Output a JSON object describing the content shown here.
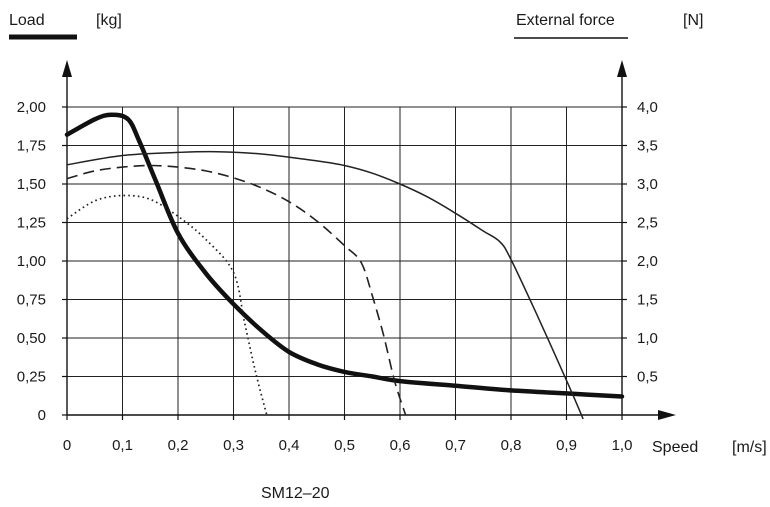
{
  "chart_data": {
    "type": "line",
    "left_axis": {
      "label": "Load",
      "unit": "[kg]",
      "range": [
        0,
        2.0
      ],
      "ticks": [
        "0",
        "0,25",
        "0,50",
        "0,75",
        "1,00",
        "1,25",
        "1,50",
        "1,75",
        "2,00"
      ]
    },
    "right_axis": {
      "label": "External force",
      "unit": "[N]",
      "range": [
        0,
        4.0
      ],
      "ticks": [
        "0,5",
        "1,0",
        "1,5",
        "2,0",
        "2,5",
        "3,0",
        "3,5",
        "4,0"
      ]
    },
    "x_axis": {
      "label": "Speed",
      "unit": "[m/s]",
      "range": [
        0,
        1.0
      ],
      "ticks": [
        "0",
        "0,1",
        "0,2",
        "0,3",
        "0,4",
        "0,5",
        "0,6",
        "0,7",
        "0,8",
        "0,9",
        "1,0"
      ]
    },
    "grid": true,
    "caption": "SM12–20",
    "series": [
      {
        "axis": "left",
        "style": "thick",
        "color": "#111111",
        "x": [
          0.0,
          0.05,
          0.08,
          0.11,
          0.13,
          0.16,
          0.2,
          0.25,
          0.3,
          0.35,
          0.4,
          0.45,
          0.5,
          0.55,
          0.6,
          0.7,
          0.8,
          0.9,
          1.0
        ],
        "y": [
          1.82,
          1.92,
          1.95,
          1.92,
          1.78,
          1.52,
          1.18,
          0.92,
          0.72,
          0.55,
          0.41,
          0.33,
          0.28,
          0.25,
          0.22,
          0.19,
          0.16,
          0.14,
          0.12
        ]
      },
      {
        "axis": "right",
        "style": "solid",
        "color": "#222222",
        "x": [
          0.0,
          0.1,
          0.2,
          0.27,
          0.35,
          0.45,
          0.5,
          0.55,
          0.6,
          0.65,
          0.7,
          0.75,
          0.78,
          0.8,
          0.85,
          0.9,
          0.93
        ],
        "y": [
          3.25,
          3.37,
          3.41,
          3.42,
          3.39,
          3.3,
          3.24,
          3.14,
          3.0,
          2.83,
          2.62,
          2.39,
          2.25,
          2.02,
          1.25,
          0.45,
          -0.05
        ]
      },
      {
        "axis": "right",
        "style": "dashed",
        "color": "#222222",
        "x": [
          0.0,
          0.05,
          0.1,
          0.15,
          0.2,
          0.25,
          0.3,
          0.35,
          0.4,
          0.45,
          0.5,
          0.53,
          0.55,
          0.57,
          0.59,
          0.61
        ],
        "y": [
          3.07,
          3.17,
          3.22,
          3.24,
          3.22,
          3.17,
          3.08,
          2.95,
          2.77,
          2.52,
          2.2,
          1.98,
          1.55,
          1.05,
          0.45,
          0.0
        ]
      },
      {
        "axis": "right",
        "style": "dotted",
        "color": "#222222",
        "x": [
          0.0,
          0.05,
          0.1,
          0.15,
          0.2,
          0.25,
          0.3,
          0.32,
          0.34,
          0.36
        ],
        "y": [
          2.55,
          2.78,
          2.85,
          2.8,
          2.58,
          2.28,
          1.85,
          1.2,
          0.55,
          0.0
        ]
      }
    ]
  }
}
